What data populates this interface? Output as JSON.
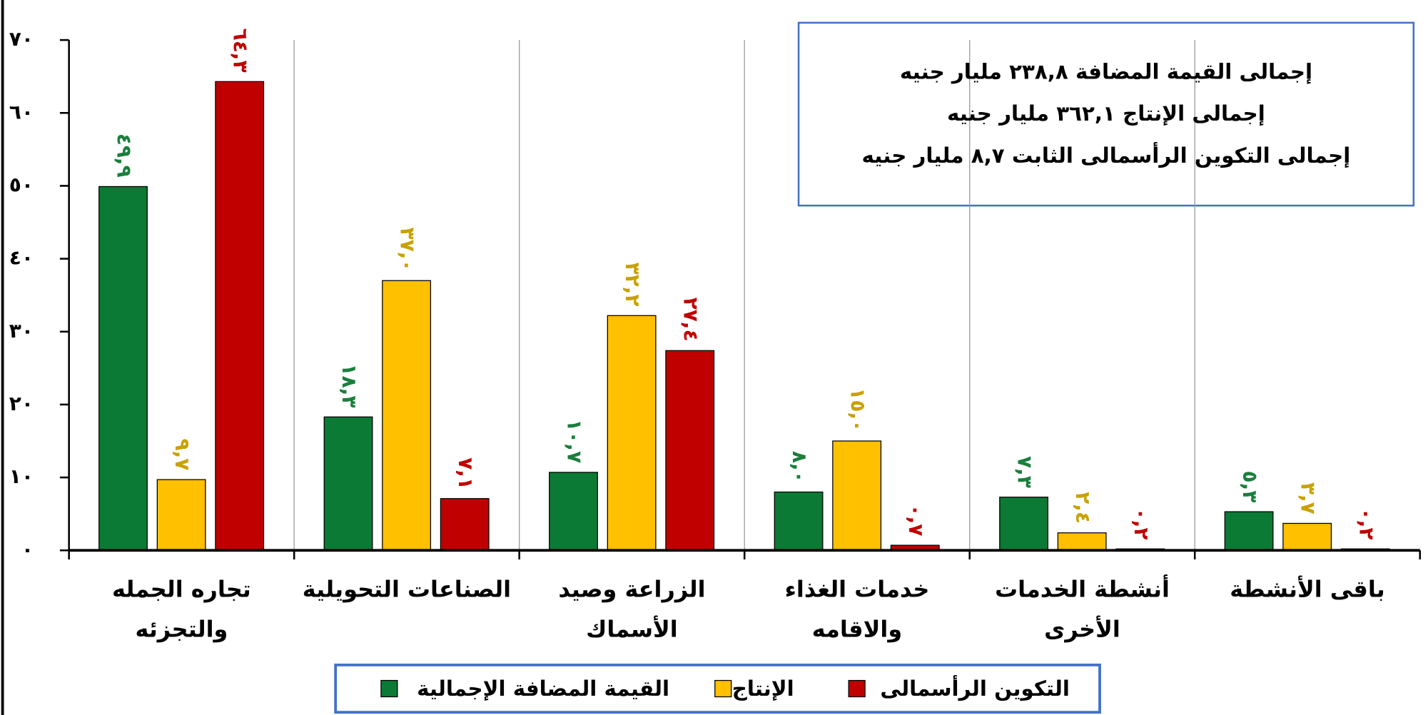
{
  "chart_data": {
    "type": "bar",
    "annotations": [
      "إجمالى القيمة المضافة ٢٣٨,٨ مليار جنيه",
      "إجمالى الإنتاج ٣٦٢,١ مليار جنيه",
      "إجمالى التكوين الرأسمالى الثابت ٨,٧ مليار جنيه"
    ],
    "categories": [
      "تجاره الجمله والتجزئه",
      "الصناعات التحويلية",
      "الزراعة وصيد الأسماك",
      "خدمات الغذاء والاقامه",
      "أنشطة الخدمات الأخرى",
      "باقى الأنشطة"
    ],
    "series": [
      {
        "name": "القيمة المضافة الإجمالية",
        "color": "#0b7a35",
        "label_color": "#1a7f3c",
        "values": [
          49.9,
          18.3,
          10.7,
          8.0,
          7.3,
          5.3
        ],
        "value_labels": [
          "٤٩,٩",
          "١٨,٣",
          "١٠,٧",
          "٨,٠",
          "٧,٣",
          "٥,٣"
        ]
      },
      {
        "name": "الإنتاج",
        "color": "#ffc000",
        "label_color": "#c9a100",
        "values": [
          9.7,
          37.0,
          32.2,
          15.0,
          2.4,
          3.7
        ],
        "value_labels": [
          "٩,٧",
          "٣٧,٠",
          "٣٢,٢",
          "١٥,٠",
          "٢,٤",
          "٣,٧"
        ]
      },
      {
        "name": "التكوين الرأسمالى",
        "color": "#c00000",
        "label_color": "#c00000",
        "values": [
          64.3,
          7.1,
          27.4,
          0.7,
          0.2,
          0.2
        ],
        "value_labels": [
          "٦٤,٣",
          "٧,١",
          "٢٧,٤",
          "٠,٧",
          "٠,٢",
          "٠,٢"
        ]
      }
    ],
    "ylim": [
      0,
      70
    ],
    "yticks": [
      {
        "value": 0,
        "label": "٠"
      },
      {
        "value": 10,
        "label": "١٠"
      },
      {
        "value": 20,
        "label": "٢٠"
      },
      {
        "value": 30,
        "label": "٣٠"
      },
      {
        "value": 40,
        "label": "٤٠"
      },
      {
        "value": 50,
        "label": "٥٠"
      },
      {
        "value": 60,
        "label": "٦٠"
      },
      {
        "value": 70,
        "label": "٧٠"
      }
    ]
  }
}
